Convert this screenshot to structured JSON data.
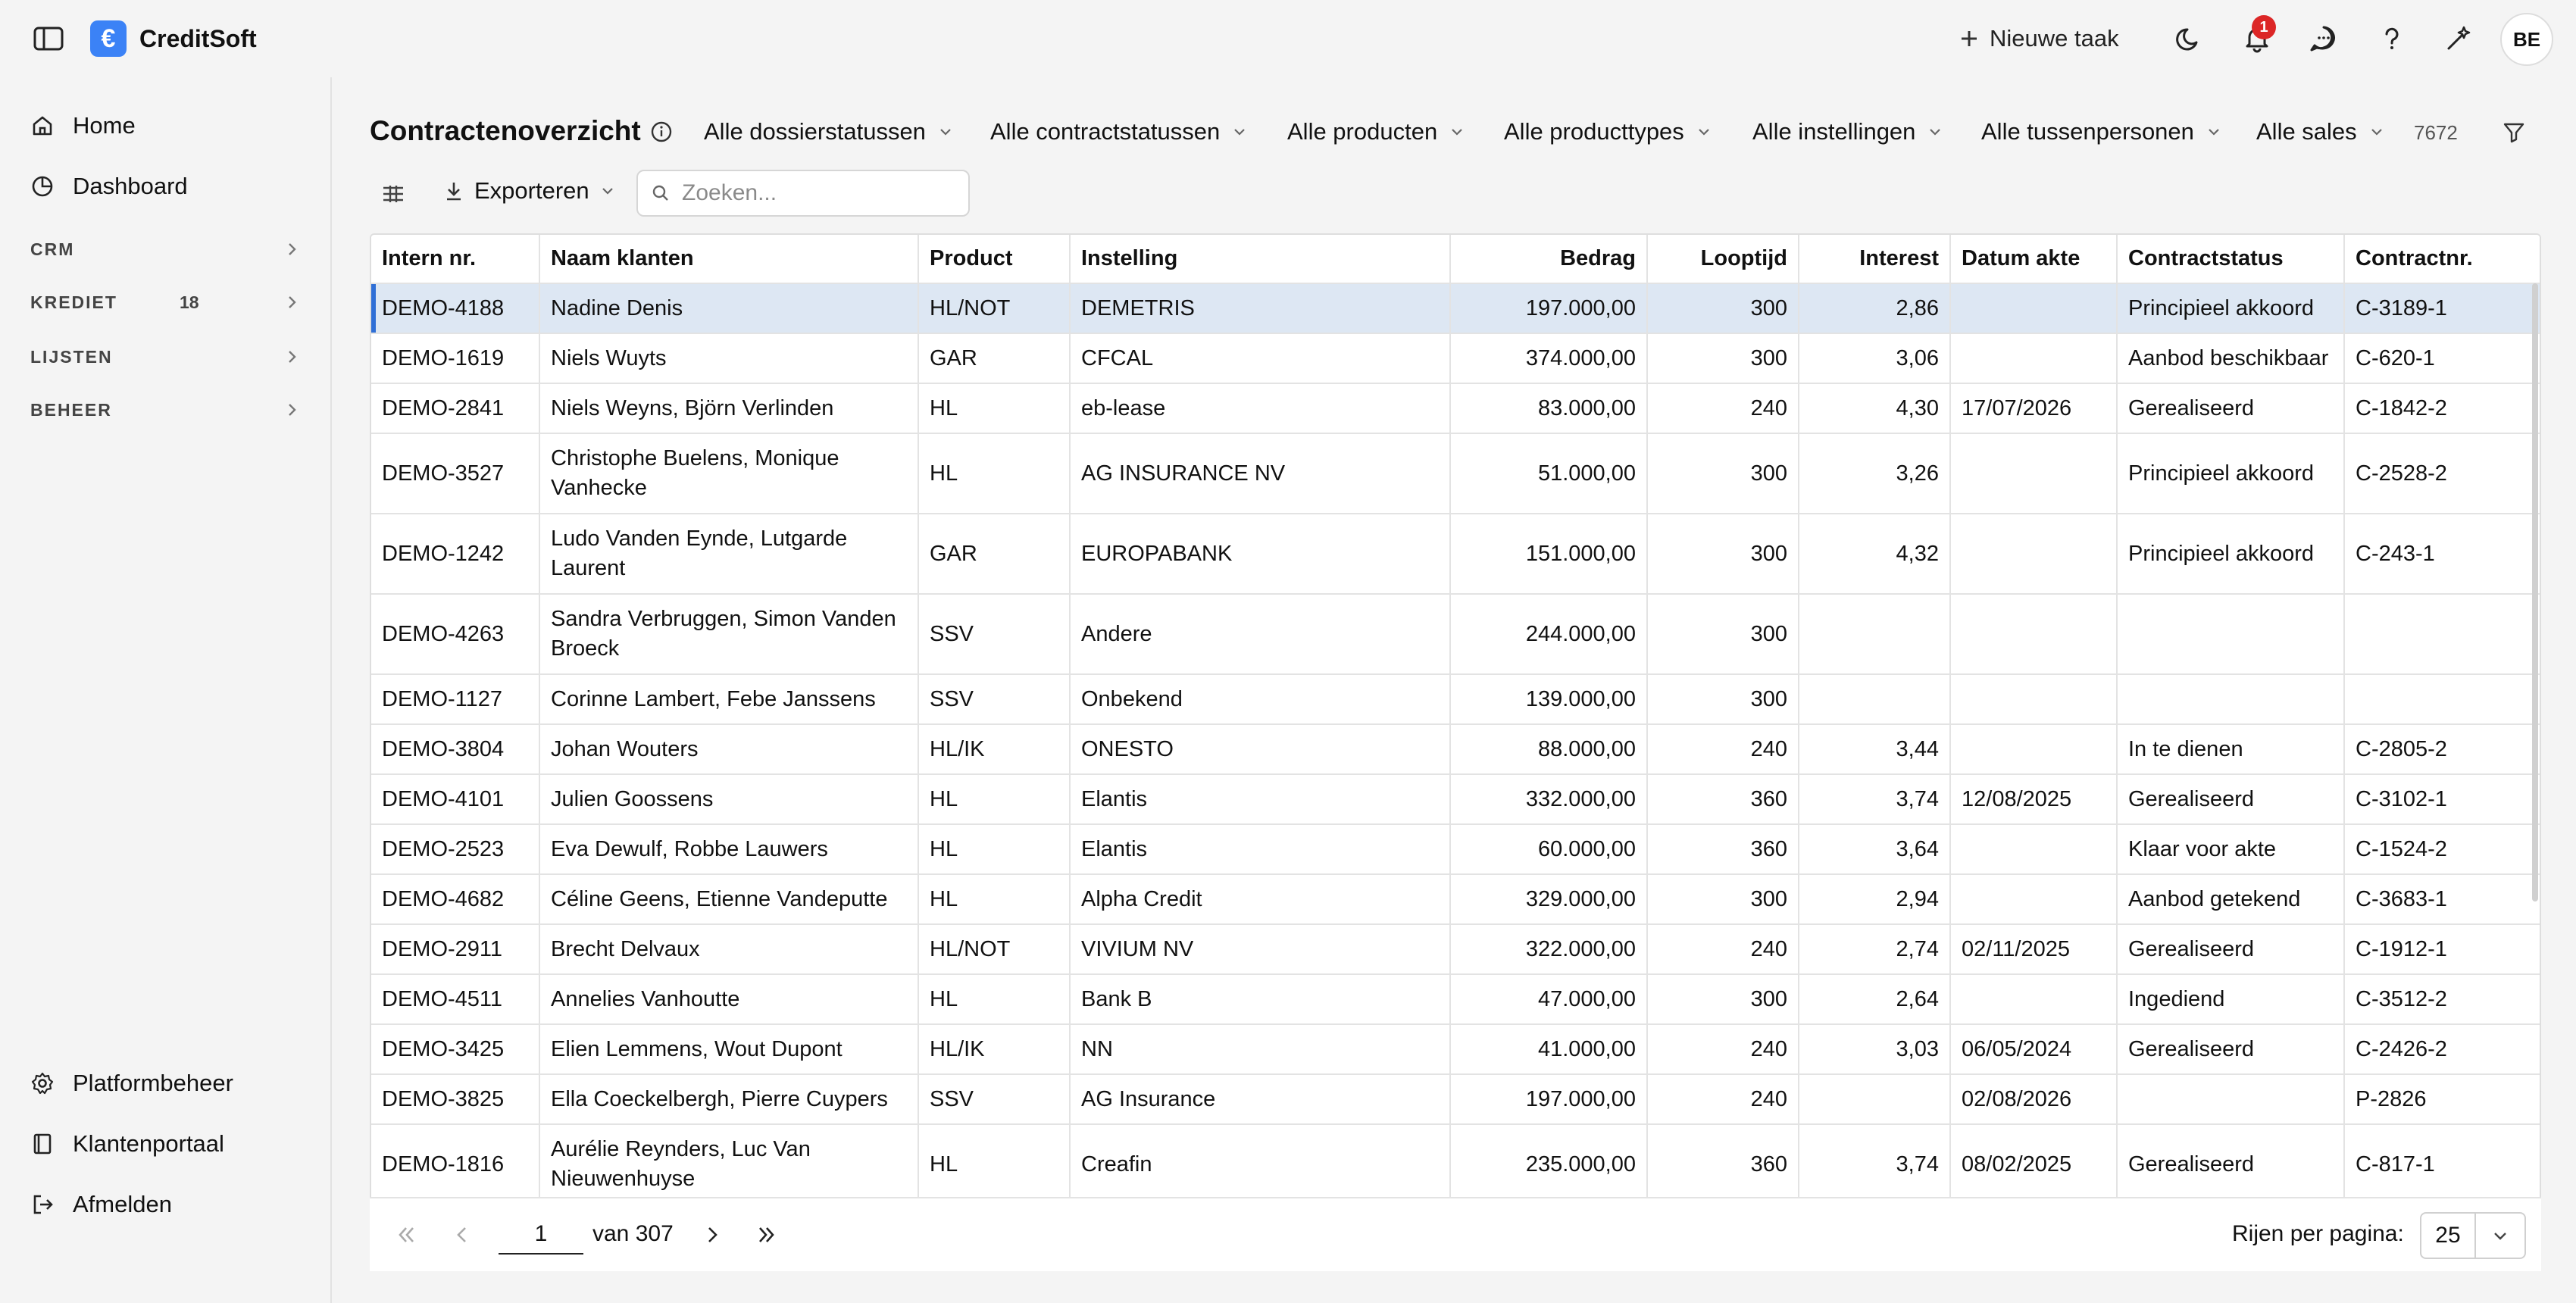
{
  "app": {
    "name": "CreditSoft",
    "logo_glyph": "€"
  },
  "header": {
    "new_task_label": "Nieuwe taak",
    "notification_count": "1",
    "avatar_initials": "BE"
  },
  "sidebar": {
    "home": "Home",
    "dashboard": "Dashboard",
    "sections": {
      "crm": "CRM",
      "krediet": "KREDIET",
      "krediet_count": "18",
      "lijsten": "LIJSTEN",
      "beheer": "BEHEER"
    },
    "platformbeheer": "Platformbeheer",
    "klantenportaal": "Klantenportaal",
    "afmelden": "Afmelden"
  },
  "page": {
    "title": "Contractenoverzicht",
    "total_count": "7672",
    "filters": {
      "dossier": "Alle dossierstatussen",
      "contract": "Alle contractstatussen",
      "producten": "Alle producten",
      "producttypes": "Alle producttypes",
      "instellingen": "Alle instellingen",
      "tussenpersonen": "Alle tussenpersonen",
      "sales": "Alle sales"
    },
    "export_label": "Exporteren",
    "search_placeholder": "Zoeken..."
  },
  "table": {
    "headers": {
      "intern": "Intern nr.",
      "naam": "Naam klanten",
      "product": "Product",
      "instelling": "Instelling",
      "bedrag": "Bedrag",
      "looptijd": "Looptijd",
      "interest": "Interest",
      "datum": "Datum akte",
      "status": "Contractstatus",
      "contractnr": "Contractnr."
    },
    "rows": [
      [
        "DEMO-4188",
        "Nadine Denis",
        "HL/NOT",
        "DEMETRIS",
        "197.000,00",
        "300",
        "2,86",
        "",
        "Principieel akkoord",
        "C-3189-1"
      ],
      [
        "DEMO-1619",
        "Niels Wuyts",
        "GAR",
        "CFCAL",
        "374.000,00",
        "300",
        "3,06",
        "",
        "Aanbod beschikbaar",
        "C-620-1"
      ],
      [
        "DEMO-2841",
        "Niels Weyns, Björn Verlinden",
        "HL",
        "eb-lease",
        "83.000,00",
        "240",
        "4,30",
        "17/07/2026",
        "Gerealiseerd",
        "C-1842-2"
      ],
      [
        "DEMO-3527",
        "Christophe Buelens, Monique Vanhecke",
        "HL",
        "AG INSURANCE NV",
        "51.000,00",
        "300",
        "3,26",
        "",
        "Principieel akkoord",
        "C-2528-2"
      ],
      [
        "DEMO-1242",
        "Ludo Vanden Eynde, Lutgarde Laurent",
        "GAR",
        "EUROPABANK",
        "151.000,00",
        "300",
        "4,32",
        "",
        "Principieel akkoord",
        "C-243-1"
      ],
      [
        "DEMO-4263",
        "Sandra Verbruggen, Simon Vanden Broeck",
        "SSV",
        "Andere",
        "244.000,00",
        "300",
        "",
        "",
        "",
        ""
      ],
      [
        "DEMO-1127",
        "Corinne Lambert, Febe Janssens",
        "SSV",
        "Onbekend",
        "139.000,00",
        "300",
        "",
        "",
        "",
        ""
      ],
      [
        "DEMO-3804",
        "Johan Wouters",
        "HL/IK",
        "ONESTO",
        "88.000,00",
        "240",
        "3,44",
        "",
        "In te dienen",
        "C-2805-2"
      ],
      [
        "DEMO-4101",
        "Julien Goossens",
        "HL",
        "Elantis",
        "332.000,00",
        "360",
        "3,74",
        "12/08/2025",
        "Gerealiseerd",
        "C-3102-1"
      ],
      [
        "DEMO-2523",
        "Eva Dewulf, Robbe Lauwers",
        "HL",
        "Elantis",
        "60.000,00",
        "360",
        "3,64",
        "",
        "Klaar voor akte",
        "C-1524-2"
      ],
      [
        "DEMO-4682",
        "Céline Geens, Etienne Vandeputte",
        "HL",
        "Alpha Credit",
        "329.000,00",
        "300",
        "2,94",
        "",
        "Aanbod getekend",
        "C-3683-1"
      ],
      [
        "DEMO-2911",
        "Brecht Delvaux",
        "HL/NOT",
        "VIVIUM NV",
        "322.000,00",
        "240",
        "2,74",
        "02/11/2025",
        "Gerealiseerd",
        "C-1912-1"
      ],
      [
        "DEMO-4511",
        "Annelies Vanhoutte",
        "HL",
        "Bank B",
        "47.000,00",
        "300",
        "2,64",
        "",
        "Ingediend",
        "C-3512-2"
      ],
      [
        "DEMO-3425",
        "Elien Lemmens, Wout Dupont",
        "HL/IK",
        "NN",
        "41.000,00",
        "240",
        "3,03",
        "06/05/2024",
        "Gerealiseerd",
        "C-2426-2"
      ],
      [
        "DEMO-3825",
        "Ella Coeckelbergh, Pierre Cuypers",
        "SSV",
        "AG Insurance",
        "197.000,00",
        "240",
        "",
        "02/08/2026",
        "",
        "P-2826"
      ],
      [
        "DEMO-1816",
        "Aurélie Reynders, Luc Van Nieuwenhuyse",
        "HL",
        "Creafin",
        "235.000,00",
        "360",
        "3,74",
        "08/02/2025",
        "Gerealiseerd",
        "C-817-1"
      ]
    ]
  },
  "pagination": {
    "current_page": "1",
    "of_label": "van 307",
    "rows_label": "Rijen per pagina:",
    "rows_per_page": "25"
  },
  "colors": {
    "accent": "#2f6fd6",
    "brand": "#3b82f6",
    "selected_row": "#dde7f3",
    "badge": "#dc2626"
  }
}
